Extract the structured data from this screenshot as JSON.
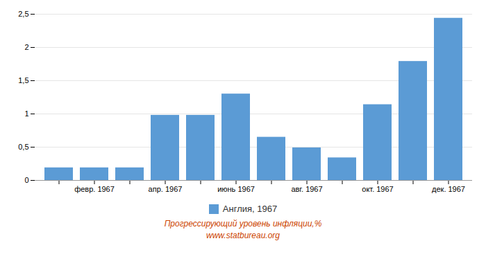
{
  "chart_data": {
    "type": "bar",
    "categories": [
      null,
      "февр. 1967",
      null,
      "апр. 1967",
      null,
      "июнь 1967",
      null,
      "авг. 1967",
      null,
      "окт. 1967",
      null,
      "дек. 1967"
    ],
    "series": [
      {
        "name": "Англия, 1967",
        "color": "#5b9bd5",
        "values": [
          0.19,
          0.19,
          0.19,
          0.98,
          0.98,
          1.3,
          0.65,
          0.49,
          0.34,
          1.14,
          1.79,
          2.44
        ]
      }
    ],
    "ylim": [
      0,
      2.5
    ],
    "yticks": [
      0,
      {
        "value": 0.5,
        "label": "0,5"
      },
      1,
      {
        "value": 1.5,
        "label": "1,5"
      },
      2,
      {
        "value": 2.5,
        "label": "2,5"
      }
    ],
    "grid": true,
    "legend": "bottom",
    "annotations": [
      "Прогрессирующий уровень инфляции,%",
      "www.statbureau.org"
    ]
  }
}
